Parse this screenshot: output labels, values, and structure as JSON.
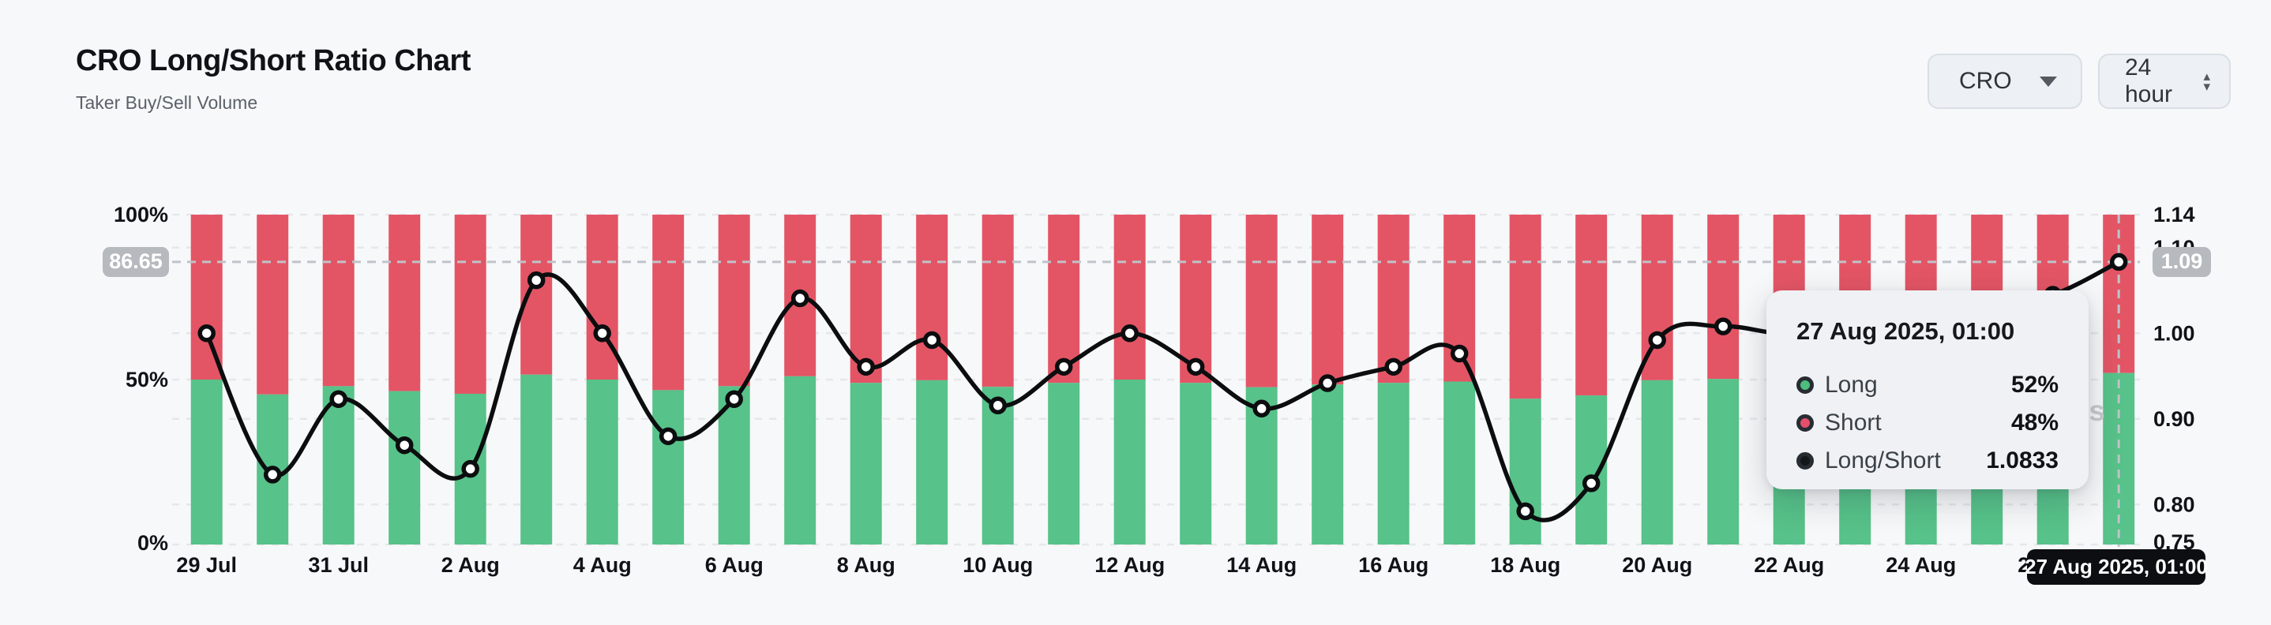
{
  "header": {
    "title": "CRO Long/Short Ratio Chart",
    "subtitle": "Taker Buy/Sell Volume"
  },
  "controls": {
    "symbol": "CRO",
    "interval": "24 hour",
    "spin_up": "▴",
    "spin_down": "▾"
  },
  "chart_data": {
    "type": "bar",
    "subtype": "stacked-percent-bars-with-ratio-line",
    "title": "CRO Long/Short Ratio Chart",
    "categories": [
      "29 Jul",
      "30 Jul",
      "31 Jul",
      "1 Aug",
      "2 Aug",
      "3 Aug",
      "4 Aug",
      "5 Aug",
      "6 Aug",
      "7 Aug",
      "8 Aug",
      "9 Aug",
      "10 Aug",
      "11 Aug",
      "12 Aug",
      "13 Aug",
      "14 Aug",
      "15 Aug",
      "16 Aug",
      "17 Aug",
      "18 Aug",
      "19 Aug",
      "20 Aug",
      "21 Aug",
      "22 Aug",
      "23 Aug",
      "24 Aug",
      "25 Aug",
      "26 Aug",
      "27 Aug"
    ],
    "x_tick_labels": [
      "29 Jul",
      "31 Jul",
      "2 Aug",
      "4 Aug",
      "6 Aug",
      "8 Aug",
      "10 Aug",
      "12 Aug",
      "14 Aug",
      "16 Aug",
      "18 Aug",
      "20 Aug",
      "22 Aug",
      "24 Aug",
      "26 Aug"
    ],
    "series": [
      {
        "name": "Long",
        "type": "bar",
        "unit": "%",
        "color": "#57c289",
        "values": [
          50,
          45.5,
          48,
          46.5,
          45.7,
          51.5,
          50,
          46.8,
          48,
          51,
          49,
          49.8,
          47.8,
          49,
          50,
          49,
          47.7,
          48.5,
          49,
          49.4,
          44.2,
          45.2,
          49.8,
          50.2,
          50,
          50.5,
          50.3,
          50.8,
          51.1,
          52
        ]
      },
      {
        "name": "Short",
        "type": "bar",
        "unit": "%",
        "color": "#e35565",
        "values": [
          50,
          54.5,
          52,
          53.5,
          54.3,
          48.5,
          50,
          53.2,
          52,
          49,
          51,
          50.2,
          52.2,
          51,
          50,
          51,
          52.3,
          51.5,
          51,
          50.6,
          55.8,
          54.8,
          50.2,
          49.8,
          50,
          49.5,
          49.7,
          49.2,
          48.9,
          48
        ]
      },
      {
        "name": "Long/Short",
        "type": "line",
        "color": "#0b0d0f",
        "values": [
          1.0,
          0.8349,
          0.9231,
          0.8692,
          0.8416,
          1.0619,
          1.0,
          0.8797,
          0.9231,
          1.0408,
          0.9608,
          0.992,
          0.9157,
          0.9608,
          1.0,
          0.9608,
          0.912,
          0.9417,
          0.9608,
          0.9763,
          0.7921,
          0.8248,
          0.992,
          1.008,
          1.0,
          1.0202,
          1.0121,
          1.0325,
          1.045,
          1.0833
        ]
      }
    ],
    "left_axis": {
      "ticks": [
        {
          "label": "100%",
          "value": 100
        },
        {
          "label": "50%",
          "value": 50
        },
        {
          "label": "0%",
          "value": 0
        }
      ],
      "range": [
        0,
        100
      ]
    },
    "right_axis": {
      "ticks": [
        {
          "label": "1.14",
          "value": 1.14
        },
        {
          "label": "1.10",
          "value": 1.1
        },
        {
          "label": "1.00",
          "value": 1.0
        },
        {
          "label": "0.90",
          "value": 0.9
        },
        {
          "label": "0.80",
          "value": 0.8
        },
        {
          "label": "0.75",
          "value": 0.75
        }
      ],
      "min": 0.75,
      "max": 1.14
    },
    "gridlines": {
      "right_values": [
        1.1,
        1.0,
        0.9,
        0.8
      ],
      "left_values": [
        100,
        50,
        0
      ],
      "style": "dashed"
    },
    "legend_position": "none",
    "bar_colors": {
      "long": "#57c289",
      "short": "#e35565"
    },
    "line_color": "#0b0d0f"
  },
  "crosshair": {
    "left_badge": "86.65",
    "right_badge": "1.09",
    "hover_index": 29,
    "hover_ratio": 1.0833,
    "date_label": "27 Aug 2025, 01:00"
  },
  "tooltip": {
    "title": "27 Aug 2025, 01:00",
    "rows": [
      {
        "label": "Long",
        "value": "52%",
        "color": "#4dbe7d"
      },
      {
        "label": "Short",
        "value": "48%",
        "color": "#e4506a"
      },
      {
        "label": "Long/Short",
        "value": "1.0833",
        "color": "#14171a"
      }
    ]
  },
  "watermark": "coinglass"
}
